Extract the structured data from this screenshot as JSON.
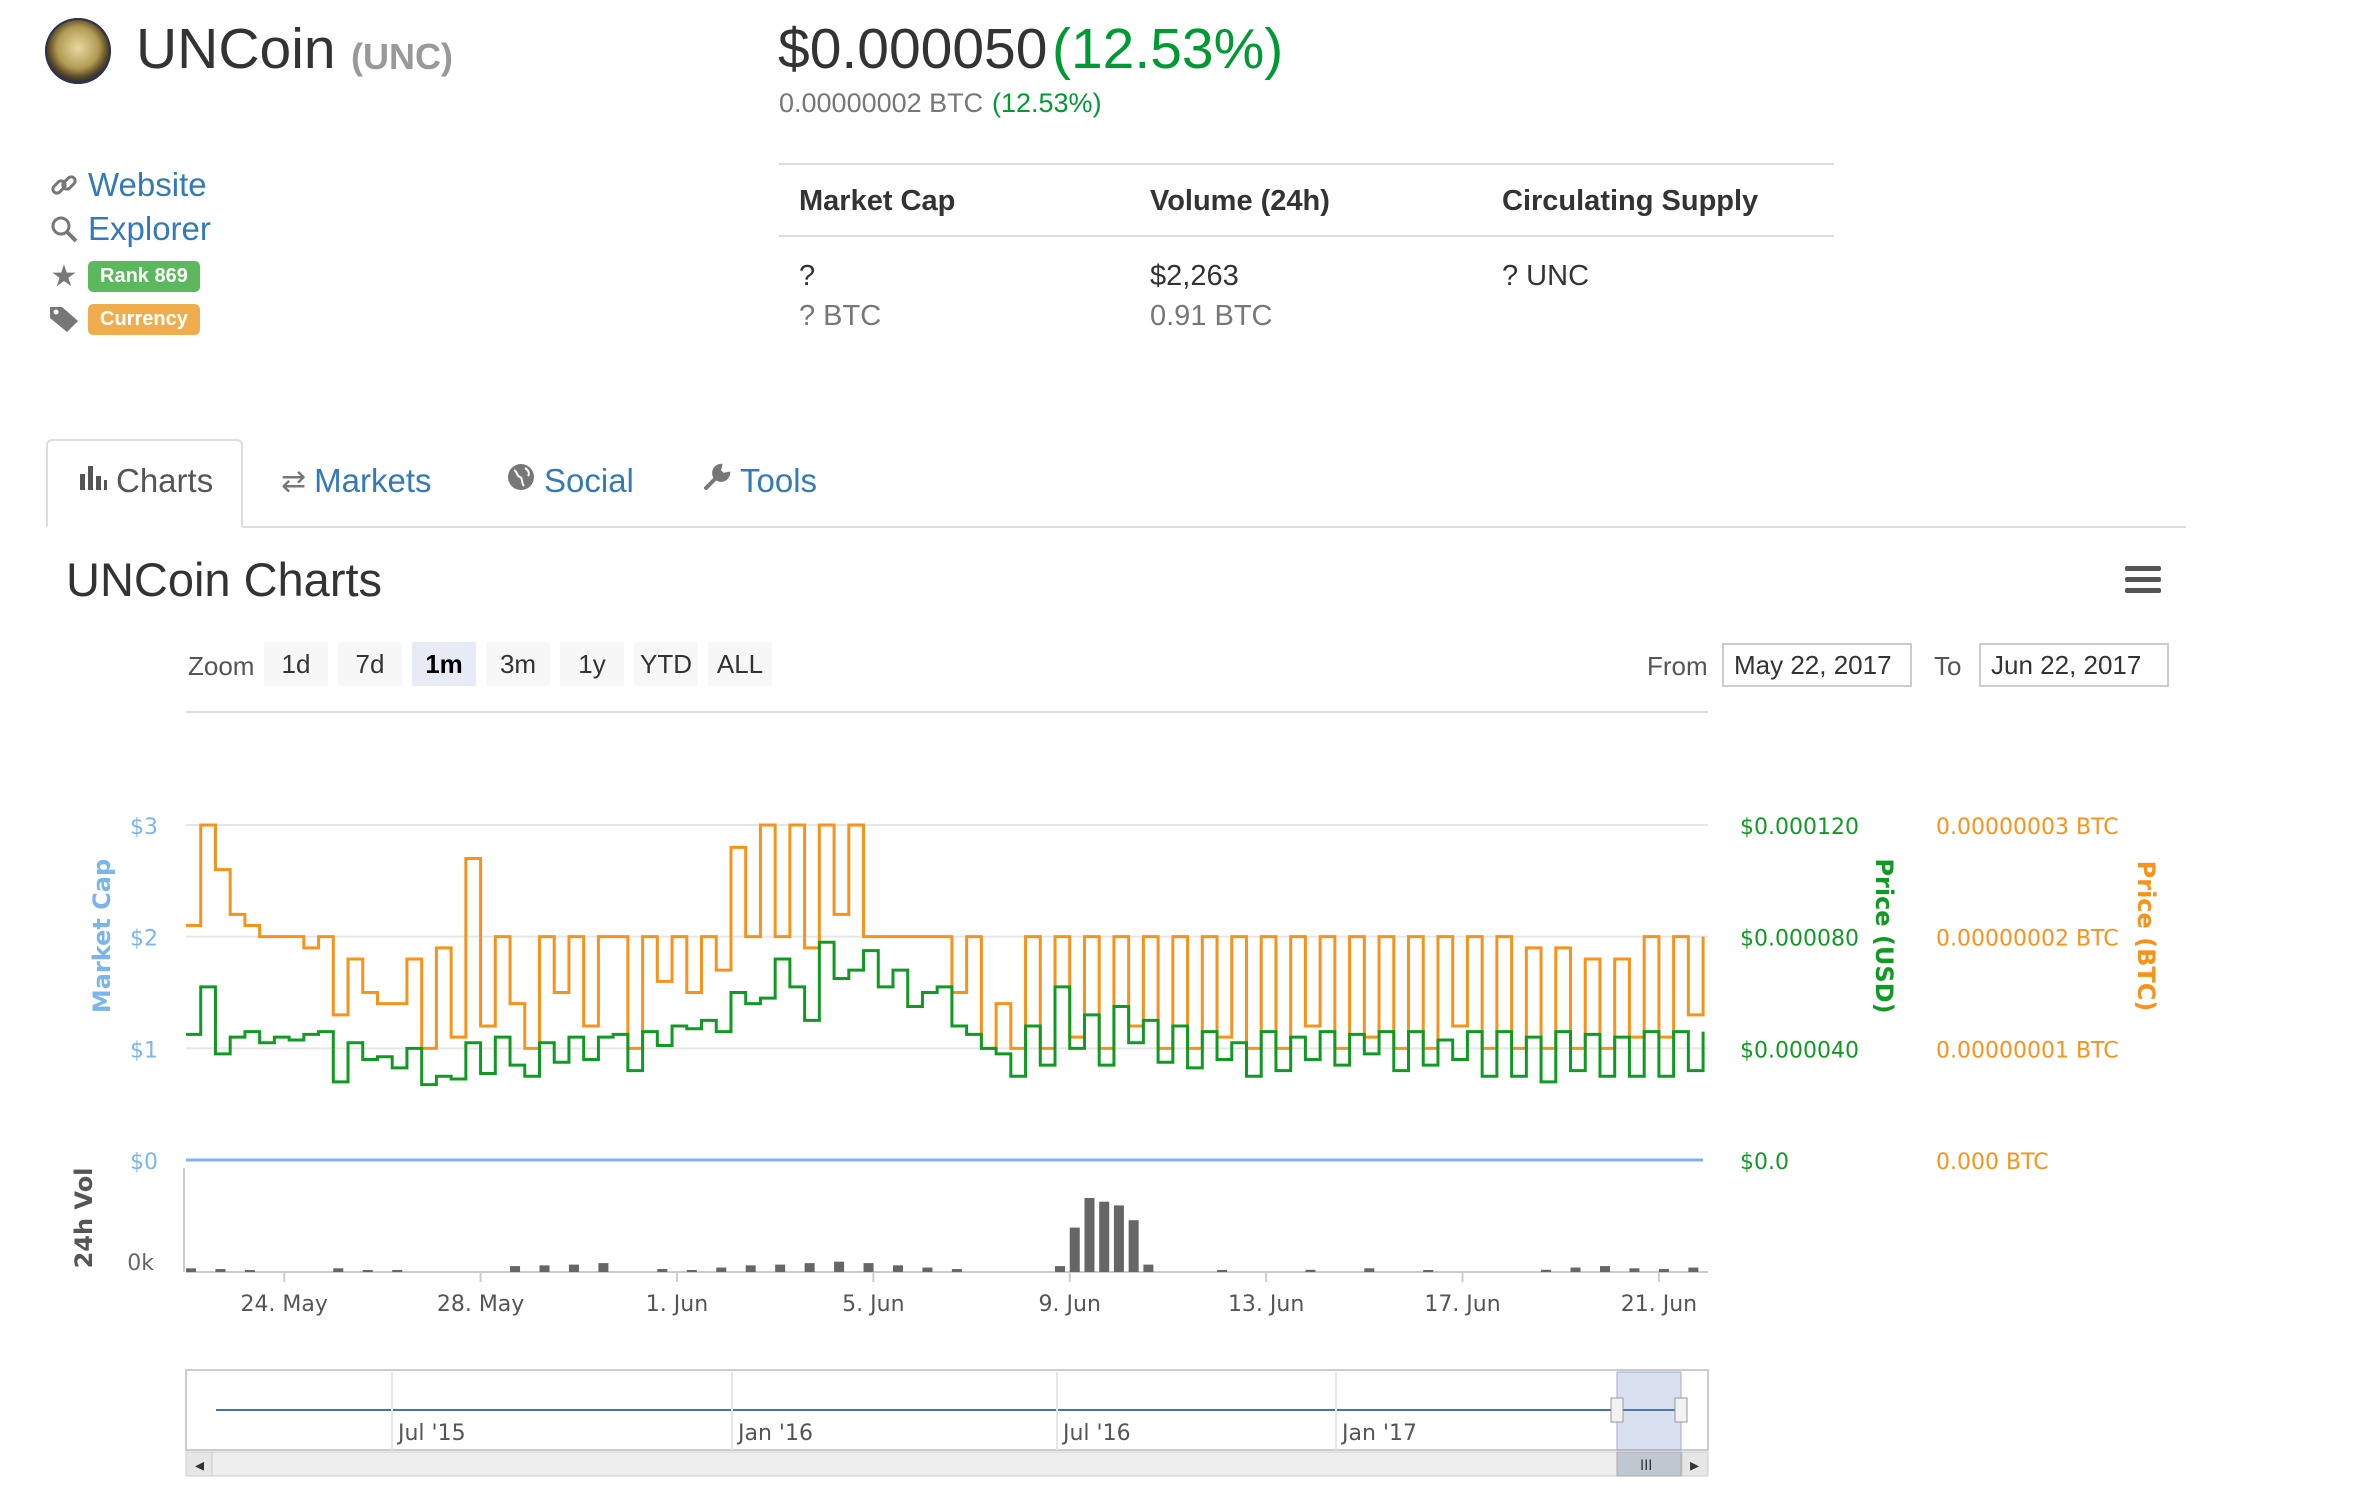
{
  "coin": {
    "name": "UNCoin",
    "symbol": "(UNC)"
  },
  "price": {
    "usd": "$0.000050",
    "usd_change": "(12.53%)",
    "btc": "0.00000002 BTC",
    "btc_change": "(12.53%)"
  },
  "links": {
    "website": "Website",
    "explorer": "Explorer",
    "rank": "Rank 869",
    "category": "Currency"
  },
  "stats": {
    "headers": [
      "Market Cap",
      "Volume (24h)",
      "Circulating Supply"
    ],
    "market_cap": {
      "value": "?",
      "btc": "? BTC"
    },
    "volume": {
      "value": "$2,263",
      "btc": "0.91 BTC"
    },
    "supply": {
      "value": "? UNC"
    }
  },
  "tabs": [
    "Charts",
    "Markets",
    "Social",
    "Tools"
  ],
  "chart_panel": {
    "title": "UNCoin Charts",
    "zoom_label": "Zoom",
    "zoom_options": [
      "1d",
      "7d",
      "1m",
      "3m",
      "1y",
      "YTD",
      "ALL"
    ],
    "zoom_selected": "1m",
    "from_label": "From",
    "from_value": "May 22, 2017",
    "to_label": "To",
    "to_value": "Jun 22, 2017"
  },
  "colors": {
    "usd_line": "#119a23",
    "btc_line": "#f7931a",
    "market_cap_axis": "#7cb5ec",
    "volume": "#666666",
    "up": "#009933"
  },
  "chart_data": {
    "type": "line",
    "x_ticks": [
      "24. May",
      "28. May",
      "1. Jun",
      "5. Jun",
      "9. Jun",
      "13. Jun",
      "17. Jun",
      "21. Jun"
    ],
    "y_left": {
      "label": "Market Cap",
      "ticks": [
        "$3",
        "$2",
        "$1",
        "$0"
      ]
    },
    "y_right_usd": {
      "label": "Price (USD)",
      "ticks": [
        "$0.000120",
        "$0.000080",
        "$0.000040",
        "$0.0"
      ],
      "range": [
        0,
        0.00012
      ]
    },
    "y_right_btc": {
      "label": "Price (BTC)",
      "ticks": [
        "0.00000003 BTC",
        "0.00000002 BTC",
        "0.00000001 BTC",
        "0.000 BTC"
      ],
      "range": [
        0,
        3e-08
      ]
    },
    "volume_axis": {
      "label": "24h Vol",
      "ticks": [
        "0k"
      ]
    },
    "navigator_ticks": [
      "Jul '15",
      "Jan '16",
      "Jul '16",
      "Jan '17"
    ],
    "series": [
      {
        "name": "Price (USD)",
        "axis": "usd",
        "x": [
          0,
          0.3,
          0.6,
          0.9,
          1.2,
          1.5,
          1.8,
          2.1,
          2.4,
          2.7,
          3,
          3.3,
          3.6,
          3.9,
          4.2,
          4.5,
          4.8,
          5.1,
          5.4,
          5.7,
          6,
          6.3,
          6.6,
          6.9,
          7.2,
          7.5,
          7.8,
          8.1,
          8.4,
          8.7,
          9,
          9.3,
          9.6,
          9.9,
          10.2,
          10.5,
          10.8,
          11.1,
          11.4,
          11.7,
          12,
          12.3,
          12.6,
          12.9,
          13.2,
          13.5,
          13.8,
          14.1,
          14.4,
          14.7,
          15,
          15.3,
          15.6,
          15.9,
          16.2,
          16.5,
          16.8,
          17.1,
          17.4,
          17.7,
          18,
          18.3,
          18.6,
          18.9,
          19.2,
          19.5,
          19.8,
          20.1,
          20.4,
          20.7,
          21,
          21.3,
          21.6,
          21.9,
          22.2,
          22.5,
          22.8,
          23.1,
          23.4,
          23.7,
          24,
          24.3,
          24.6,
          24.9,
          25.2,
          25.5,
          25.8,
          26.1,
          26.4,
          26.7,
          27,
          27.3,
          27.6,
          27.9,
          28.2,
          28.5,
          28.8,
          29.1,
          29.4,
          29.7,
          30,
          30.3,
          30.6,
          30.9
        ],
        "values": [
          4.5e-05,
          6.2e-05,
          3.8e-05,
          4.4e-05,
          4.6e-05,
          4.2e-05,
          4.4e-05,
          4.3e-05,
          4.5e-05,
          4.6e-05,
          2.8e-05,
          4.2e-05,
          3.6e-05,
          3.7e-05,
          3.3e-05,
          4e-05,
          2.7e-05,
          3e-05,
          2.9e-05,
          4.2e-05,
          3.1e-05,
          4.4e-05,
          3.4e-05,
          3e-05,
          4.2e-05,
          3.5e-05,
          4.4e-05,
          3.6e-05,
          4.4e-05,
          4.5e-05,
          3.2e-05,
          4.6e-05,
          4.1e-05,
          4.8e-05,
          4.7e-05,
          5e-05,
          4.6e-05,
          6e-05,
          5.6e-05,
          5.8e-05,
          7.2e-05,
          6.2e-05,
          5e-05,
          7.8e-05,
          6.5e-05,
          6.8e-05,
          7.5e-05,
          6.2e-05,
          6.8e-05,
          5.5e-05,
          6e-05,
          6.2e-05,
          4.8e-05,
          4.5e-05,
          4e-05,
          3.8e-05,
          3e-05,
          4.8e-05,
          3.4e-05,
          6.2e-05,
          4e-05,
          5.2e-05,
          3.4e-05,
          5.5e-05,
          4.2e-05,
          5e-05,
          3.5e-05,
          4.8e-05,
          3.3e-05,
          4.6e-05,
          3.6e-05,
          4.2e-05,
          3e-05,
          4.6e-05,
          3.2e-05,
          4.4e-05,
          3.6e-05,
          4.6e-05,
          3.4e-05,
          4.5e-05,
          3.8e-05,
          4.6e-05,
          3.2e-05,
          4.6e-05,
          3.4e-05,
          4.3e-05,
          3.6e-05,
          4.6e-05,
          3e-05,
          4.6e-05,
          3e-05,
          4.4e-05,
          2.8e-05,
          4.6e-05,
          3.2e-05,
          4.5e-05,
          3e-05,
          4.4e-05,
          3e-05,
          4.6e-05,
          3e-05,
          4.6e-05,
          3.2e-05,
          4.6e-05
        ]
      },
      {
        "name": "Price (BTC)",
        "axis": "btc",
        "x": [
          0,
          0.3,
          0.6,
          0.9,
          1.2,
          1.5,
          1.8,
          2.1,
          2.4,
          2.7,
          3,
          3.3,
          3.6,
          3.9,
          4.2,
          4.5,
          4.8,
          5.1,
          5.4,
          5.7,
          6,
          6.3,
          6.6,
          6.9,
          7.2,
          7.5,
          7.8,
          8.1,
          8.4,
          8.7,
          9,
          9.3,
          9.6,
          9.9,
          10.2,
          10.5,
          10.8,
          11.1,
          11.4,
          11.7,
          12,
          12.3,
          12.6,
          12.9,
          13.2,
          13.5,
          13.8,
          14.1,
          14.4,
          14.7,
          15,
          15.3,
          15.6,
          15.9,
          16.2,
          16.5,
          16.8,
          17.1,
          17.4,
          17.7,
          18,
          18.3,
          18.6,
          18.9,
          19.2,
          19.5,
          19.8,
          20.1,
          20.4,
          20.7,
          21,
          21.3,
          21.6,
          21.9,
          22.2,
          22.5,
          22.8,
          23.1,
          23.4,
          23.7,
          24,
          24.3,
          24.6,
          24.9,
          25.2,
          25.5,
          25.8,
          26.1,
          26.4,
          26.7,
          27,
          27.3,
          27.6,
          27.9,
          28.2,
          28.5,
          28.8,
          29.1,
          29.4,
          29.7,
          30,
          30.3,
          30.6,
          30.9
        ],
        "values": [
          2.1e-08,
          3e-08,
          2.6e-08,
          2.2e-08,
          2.1e-08,
          2e-08,
          2e-08,
          2e-08,
          1.9e-08,
          2e-08,
          1.3e-08,
          1.8e-08,
          1.5e-08,
          1.4e-08,
          1.4e-08,
          1.8e-08,
          1e-08,
          1.9e-08,
          1.1e-08,
          2.7e-08,
          1.2e-08,
          2e-08,
          1.4e-08,
          1e-08,
          2e-08,
          1.5e-08,
          2e-08,
          1.2e-08,
          2e-08,
          2e-08,
          1e-08,
          2e-08,
          1.6e-08,
          2e-08,
          1.5e-08,
          2e-08,
          1.7e-08,
          2.8e-08,
          2e-08,
          3e-08,
          2e-08,
          3e-08,
          1.9e-08,
          3e-08,
          2.2e-08,
          3e-08,
          2e-08,
          2e-08,
          2e-08,
          2e-08,
          2e-08,
          2e-08,
          1.5e-08,
          2e-08,
          1e-08,
          1.4e-08,
          1e-08,
          2e-08,
          1e-08,
          2e-08,
          1.1e-08,
          2e-08,
          1e-08,
          2e-08,
          1.2e-08,
          2e-08,
          1e-08,
          2e-08,
          1e-08,
          2e-08,
          1.1e-08,
          2e-08,
          1e-08,
          2e-08,
          1e-08,
          2e-08,
          1.2e-08,
          2e-08,
          1e-08,
          2e-08,
          1.1e-08,
          2e-08,
          1e-08,
          2e-08,
          1e-08,
          2e-08,
          1.2e-08,
          2e-08,
          1e-08,
          2e-08,
          1e-08,
          1.9e-08,
          1e-08,
          1.9e-08,
          1e-08,
          1.8e-08,
          1e-08,
          1.8e-08,
          1.1e-08,
          2e-08,
          1.1e-08,
          2e-08,
          1.3e-08,
          2e-08
        ]
      },
      {
        "name": "Market Cap",
        "axis": "left",
        "x": [
          0,
          30.9
        ],
        "values": [
          0,
          0
        ]
      },
      {
        "name": "24h Vol",
        "axis": "volume",
        "x": [
          0,
          0.6,
          1.2,
          3,
          3.6,
          4.2,
          6.6,
          7.2,
          7.8,
          8.4,
          9.6,
          10.2,
          10.8,
          11.4,
          12,
          12.6,
          13.2,
          13.8,
          14.4,
          15,
          15.6,
          17.7,
          18,
          18.3,
          18.6,
          18.9,
          19.2,
          19.5,
          21,
          22.8,
          24,
          25.2,
          27.6,
          28.2,
          28.8,
          29.4,
          30,
          30.6
        ],
        "values": [
          0.05,
          0.04,
          0.02,
          0.05,
          0.01,
          0.02,
          0.08,
          0.09,
          0.1,
          0.12,
          0.04,
          0.02,
          0.06,
          0.09,
          0.1,
          0.12,
          0.14,
          0.12,
          0.09,
          0.06,
          0.04,
          0.08,
          0.6,
          1.0,
          0.95,
          0.9,
          0.7,
          0.1,
          0.02,
          0.03,
          0.05,
          0.02,
          0.03,
          0.06,
          0.08,
          0.05,
          0.04,
          0.06
        ]
      }
    ],
    "ylim_usd": [
      0,
      0.00012
    ],
    "ylim_btc": [
      0,
      3e-08
    ],
    "xlim_days_note": "May 22 – Jun 22, 2017"
  }
}
